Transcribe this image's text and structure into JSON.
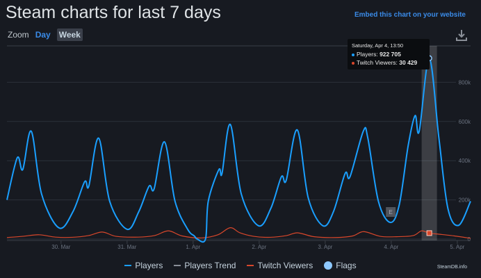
{
  "header": {
    "title": "Steam charts for last 7 days",
    "embed_link": "Embed this chart on your website",
    "zoom_label": "Zoom",
    "zoom_options": [
      "Day",
      "Week"
    ],
    "zoom_selected": "Week"
  },
  "icons": {
    "download": "download-icon"
  },
  "tooltip": {
    "date": "Saturday, Apr 4, 13:50",
    "players_label": "Players: ",
    "players_value": "922 705",
    "twitch_label": "Twitch Viewers: ",
    "twitch_value": "30 429"
  },
  "credit": "SteamDB.info",
  "colors": {
    "players": "#1a9fff",
    "twitch": "#d9472b",
    "trend": "#8a8f98",
    "flags": "#8ec9ff",
    "background": "#171a21"
  },
  "chart_data": {
    "type": "line",
    "x_ticks": [
      "30. Mar",
      "31. Mar",
      "1. Apr",
      "2. Apr",
      "3. Apr",
      "4. Apr",
      "5. Apr"
    ],
    "y_ticks": [
      "0",
      "200k",
      "400k",
      "600k",
      "800k"
    ],
    "ylim": [
      0,
      1000000
    ],
    "xlim": [
      "2020-03-29 04:20",
      "2020-04-05 04:50"
    ],
    "grid": true,
    "legend_position": "bottom",
    "legend": [
      "Players",
      "Players Trend",
      "Twitch Viewers",
      "Flags"
    ],
    "highlight": {
      "date": "2020-04-04 13:50",
      "players": 922705,
      "twitch": 30429
    },
    "flags": [
      {
        "date": "2020-04-03 23:50",
        "label": "E"
      }
    ],
    "series": [
      {
        "name": "Players",
        "points": [
          [
            "2020-03-29 04:20",
            200000
          ],
          [
            "2020-03-29 08:05",
            415000
          ],
          [
            "2020-03-29 10:05",
            355000
          ],
          [
            "2020-03-29 13:10",
            550000
          ],
          [
            "2020-03-29 16:55",
            230000
          ],
          [
            "2020-03-29 23:15",
            57000
          ],
          [
            "2020-03-30 04:20",
            140000
          ],
          [
            "2020-03-30 08:35",
            293000
          ],
          [
            "2020-03-30 10:05",
            270000
          ],
          [
            "2020-03-30 13:40",
            515000
          ],
          [
            "2020-03-30 17:40",
            193000
          ],
          [
            "2020-03-31 00:00",
            50000
          ],
          [
            "2020-03-31 04:15",
            140000
          ],
          [
            "2020-03-31 08:00",
            270000
          ],
          [
            "2020-03-31 09:50",
            257000
          ],
          [
            "2020-03-31 13:35",
            496000
          ],
          [
            "2020-03-31 17:25",
            193000
          ],
          [
            "2020-03-31 22:00",
            50000
          ],
          [
            "2020-04-01 00:30",
            15000
          ],
          [
            "2020-04-01 01:30",
            0
          ],
          [
            "2020-04-01 04:30",
            0
          ],
          [
            "2020-04-01 05:30",
            193000
          ],
          [
            "2020-04-01 09:20",
            354000
          ],
          [
            "2020-04-01 10:30",
            335000
          ],
          [
            "2020-04-01 13:30",
            585000
          ],
          [
            "2020-04-01 17:30",
            230000
          ],
          [
            "2020-04-01 23:45",
            68000
          ],
          [
            "2020-04-02 04:15",
            157000
          ],
          [
            "2020-04-02 08:05",
            318000
          ],
          [
            "2020-04-02 09:50",
            300000
          ],
          [
            "2020-04-02 13:50",
            557000
          ],
          [
            "2020-04-02 17:50",
            210000
          ],
          [
            "2020-04-02 23:10",
            68000
          ],
          [
            "2020-04-03 03:00",
            140000
          ],
          [
            "2020-04-03 07:15",
            335000
          ],
          [
            "2020-04-03 09:00",
            318000
          ],
          [
            "2020-04-03 13:50",
            550000
          ],
          [
            "2020-04-03 15:30",
            515000
          ],
          [
            "2020-04-03 19:20",
            193000
          ],
          [
            "2020-04-03 23:40",
            85000
          ],
          [
            "2020-04-04 02:55",
            175000
          ],
          [
            "2020-04-04 06:10",
            478000
          ],
          [
            "2020-04-04 08:40",
            630000
          ],
          [
            "2020-04-04 10:10",
            550000
          ],
          [
            "2020-04-04 13:50",
            922705
          ],
          [
            "2020-04-04 17:20",
            514000
          ],
          [
            "2020-04-04 20:35",
            157000
          ],
          [
            "2020-04-05 00:30",
            70000
          ],
          [
            "2020-04-05 04:50",
            193000
          ]
        ]
      },
      {
        "name": "Twitch Viewers",
        "points": [
          [
            "2020-03-29 04:20",
            8000
          ],
          [
            "2020-03-29 10:00",
            14000
          ],
          [
            "2020-03-29 16:00",
            22000
          ],
          [
            "2020-03-29 22:00",
            10000
          ],
          [
            "2020-03-30 04:00",
            9000
          ],
          [
            "2020-03-30 10:00",
            18000
          ],
          [
            "2020-03-30 15:00",
            36000
          ],
          [
            "2020-03-30 20:00",
            14000
          ],
          [
            "2020-03-31 04:00",
            10000
          ],
          [
            "2020-03-31 10:00",
            18000
          ],
          [
            "2020-03-31 15:00",
            42000
          ],
          [
            "2020-03-31 20:00",
            16000
          ],
          [
            "2020-04-01 03:00",
            6000
          ],
          [
            "2020-04-01 09:00",
            22000
          ],
          [
            "2020-04-01 13:30",
            58000
          ],
          [
            "2020-04-01 17:00",
            32000
          ],
          [
            "2020-04-01 22:00",
            14000
          ],
          [
            "2020-04-02 04:00",
            9000
          ],
          [
            "2020-04-02 10:00",
            18000
          ],
          [
            "2020-04-02 14:00",
            32000
          ],
          [
            "2020-04-02 20:00",
            12000
          ],
          [
            "2020-04-03 04:00",
            8000
          ],
          [
            "2020-04-03 10:00",
            16000
          ],
          [
            "2020-04-03 14:00",
            38000
          ],
          [
            "2020-04-03 20:00",
            14000
          ],
          [
            "2020-04-04 02:00",
            12000
          ],
          [
            "2020-04-04 08:00",
            18000
          ],
          [
            "2020-04-04 11:00",
            42000
          ],
          [
            "2020-04-04 13:50",
            30429
          ],
          [
            "2020-04-04 18:00",
            24000
          ],
          [
            "2020-04-04 23:00",
            16000
          ],
          [
            "2020-04-05 04:50",
            4000
          ]
        ]
      }
    ]
  }
}
